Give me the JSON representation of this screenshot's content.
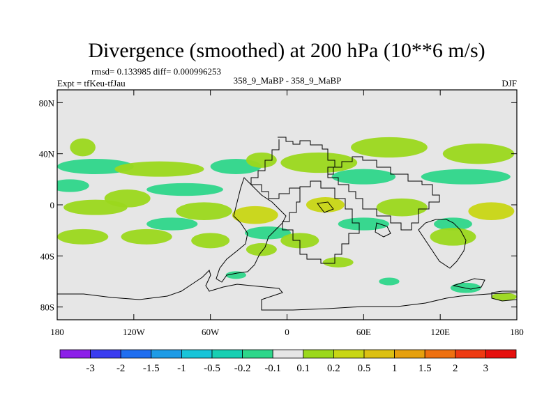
{
  "chart_data": {
    "type": "heatmap",
    "title": "Divergence (smoothed) at 200 hPa (10**6 m/s)",
    "subtitle_stats": "rmsd= 0.133985 diff= 0.000996253",
    "left_label": "Expt = tfKeu-tfJau",
    "center_label": "358_9_MaBP - 358_9_MaBP",
    "right_label": "DJF",
    "x_ticks": [
      "180",
      "120W",
      "60W",
      "0",
      "60E",
      "120E",
      "180"
    ],
    "x_tick_values": [
      -180,
      -120,
      -60,
      0,
      60,
      120,
      180
    ],
    "y_ticks": [
      "80N",
      "40N",
      "0",
      "40S",
      "80S"
    ],
    "y_tick_values": [
      80,
      40,
      0,
      -40,
      -80
    ],
    "xlim": [
      -180,
      180
    ],
    "ylim": [
      -90,
      90
    ],
    "colorbar": {
      "labels": [
        "-3",
        "-2",
        "-1.5",
        "-1",
        "-0.5",
        "-0.2",
        "-0.1",
        "0.1",
        "0.2",
        "0.5",
        "1",
        "1.5",
        "2",
        "3"
      ],
      "colors": [
        "#8c1fe8",
        "#3a3cf0",
        "#1f6ef0",
        "#1e9be6",
        "#18c4d8",
        "#17cfb2",
        "#2ed68a",
        "#e6e6e6",
        "#9bd81c",
        "#c8d614",
        "#dcc012",
        "#e6a00e",
        "#ee7010",
        "#ee3a12",
        "#e6100e"
      ]
    },
    "blobs": [
      {
        "lon": -160,
        "lat": 45,
        "rx": 10,
        "ry": 7,
        "level": "0.2"
      },
      {
        "lon": -150,
        "lat": 30,
        "rx": 30,
        "ry": 6,
        "level": "-0.2"
      },
      {
        "lon": -100,
        "lat": 28,
        "rx": 35,
        "ry": 6,
        "level": "0.2"
      },
      {
        "lon": -40,
        "lat": 30,
        "rx": 20,
        "ry": 6,
        "level": "-0.2"
      },
      {
        "lon": -20,
        "lat": 35,
        "rx": 12,
        "ry": 6,
        "level": "0.2"
      },
      {
        "lon": 25,
        "lat": 33,
        "rx": 30,
        "ry": 8,
        "level": "0.2"
      },
      {
        "lon": 80,
        "lat": 45,
        "rx": 30,
        "ry": 8,
        "level": "0.2"
      },
      {
        "lon": 150,
        "lat": 40,
        "rx": 28,
        "ry": 8,
        "level": "0.2"
      },
      {
        "lon": 60,
        "lat": 22,
        "rx": 25,
        "ry": 6,
        "level": "-0.2"
      },
      {
        "lon": 140,
        "lat": 22,
        "rx": 35,
        "ry": 6,
        "level": "-0.2"
      },
      {
        "lon": -170,
        "lat": 15,
        "rx": 15,
        "ry": 5,
        "level": "-0.2"
      },
      {
        "lon": -80,
        "lat": 12,
        "rx": 30,
        "ry": 5,
        "level": "-0.2"
      },
      {
        "lon": -125,
        "lat": 5,
        "rx": 18,
        "ry": 7,
        "level": "0.2"
      },
      {
        "lon": -150,
        "lat": -2,
        "rx": 25,
        "ry": 6,
        "level": "0.2"
      },
      {
        "lon": -65,
        "lat": -5,
        "rx": 22,
        "ry": 7,
        "level": "0.2"
      },
      {
        "lon": -25,
        "lat": -8,
        "rx": 18,
        "ry": 7,
        "level": "0.5"
      },
      {
        "lon": 30,
        "lat": 0,
        "rx": 15,
        "ry": 6,
        "level": "0.5"
      },
      {
        "lon": 90,
        "lat": -2,
        "rx": 20,
        "ry": 7,
        "level": "0.2"
      },
      {
        "lon": 160,
        "lat": -5,
        "rx": 18,
        "ry": 7,
        "level": "0.5"
      },
      {
        "lon": -90,
        "lat": -15,
        "rx": 20,
        "ry": 5,
        "level": "-0.2"
      },
      {
        "lon": -15,
        "lat": -22,
        "rx": 18,
        "ry": 5,
        "level": "-0.2"
      },
      {
        "lon": 60,
        "lat": -15,
        "rx": 20,
        "ry": 5,
        "level": "-0.2"
      },
      {
        "lon": 130,
        "lat": -15,
        "rx": 15,
        "ry": 5,
        "level": "-0.2"
      },
      {
        "lon": -160,
        "lat": -25,
        "rx": 20,
        "ry": 6,
        "level": "0.2"
      },
      {
        "lon": -110,
        "lat": -25,
        "rx": 20,
        "ry": 6,
        "level": "0.2"
      },
      {
        "lon": -60,
        "lat": -28,
        "rx": 15,
        "ry": 6,
        "level": "0.2"
      },
      {
        "lon": -20,
        "lat": -35,
        "rx": 12,
        "ry": 5,
        "level": "0.2"
      },
      {
        "lon": 10,
        "lat": -28,
        "rx": 15,
        "ry": 6,
        "level": "0.2"
      },
      {
        "lon": 130,
        "lat": -25,
        "rx": 18,
        "ry": 7,
        "level": "0.2"
      },
      {
        "lon": 40,
        "lat": -45,
        "rx": 12,
        "ry": 4,
        "level": "0.2"
      },
      {
        "lon": -40,
        "lat": -55,
        "rx": 8,
        "ry": 3,
        "level": "-0.2"
      },
      {
        "lon": 80,
        "lat": -60,
        "rx": 8,
        "ry": 3,
        "level": "-0.2"
      },
      {
        "lon": 140,
        "lat": -65,
        "rx": 12,
        "ry": 4,
        "level": "-0.2"
      },
      {
        "lon": 170,
        "lat": -72,
        "rx": 10,
        "ry": 3,
        "level": "0.2"
      }
    ]
  }
}
